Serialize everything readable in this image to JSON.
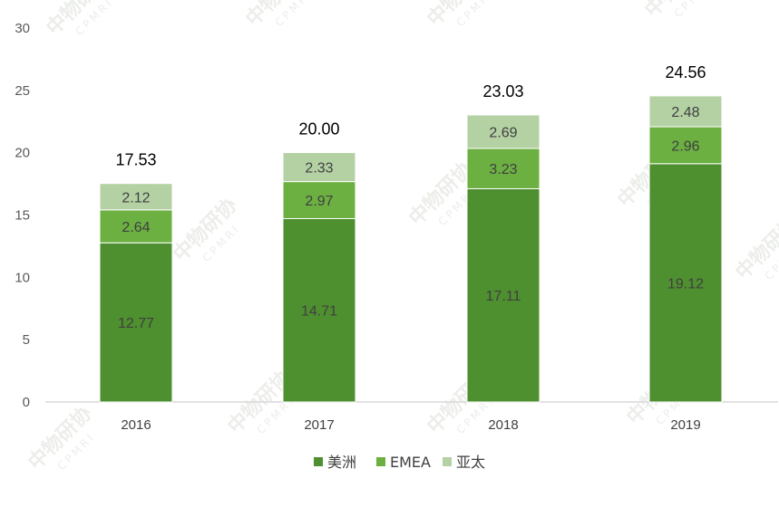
{
  "chart_data": {
    "type": "bar",
    "stacked": true,
    "categories": [
      "2016",
      "2017",
      "2018",
      "2019"
    ],
    "series": [
      {
        "name": "美洲",
        "color": "#4e8f2f",
        "values": [
          12.77,
          14.71,
          17.11,
          19.12
        ]
      },
      {
        "name": "EMEA",
        "color": "#6cb042",
        "values": [
          2.64,
          2.97,
          3.23,
          2.96
        ]
      },
      {
        "name": "亚太",
        "color": "#b4d1a4",
        "values": [
          2.12,
          2.33,
          2.69,
          2.48
        ]
      }
    ],
    "totals": [
      "17.53",
      "20.00",
      "23.03",
      "24.56"
    ],
    "ylim": [
      0,
      30
    ],
    "yticks": [
      0,
      5,
      10,
      15,
      20,
      25,
      30
    ],
    "grid": false,
    "legend_position": "bottom",
    "title": "",
    "xlabel": "",
    "ylabel": ""
  },
  "watermark": {
    "text": "中物研协",
    "sub": "CPMRI",
    "color": "#c9cfc4"
  }
}
